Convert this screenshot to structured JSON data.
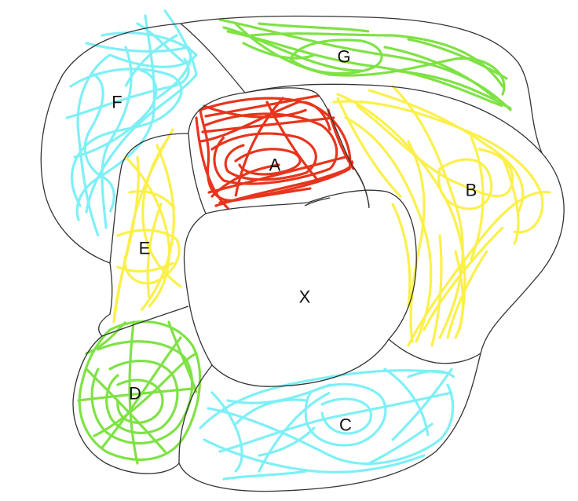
{
  "colors": {
    "red": "#e8341c",
    "yellow": "#fbf04a",
    "green": "#7ee244",
    "cyan": "#7df0f6",
    "outline": "#333333"
  },
  "regions": [
    {
      "key": "A",
      "label": "A",
      "color": "red",
      "filled": true
    },
    {
      "key": "B",
      "label": "B",
      "color": "yellow",
      "filled": true
    },
    {
      "key": "C",
      "label": "C",
      "color": "cyan",
      "filled": true
    },
    {
      "key": "D",
      "label": "D",
      "color": "green",
      "filled": true
    },
    {
      "key": "E",
      "label": "E",
      "color": "yellow",
      "filled": true
    },
    {
      "key": "F",
      "label": "F",
      "color": "cyan",
      "filled": true
    },
    {
      "key": "G",
      "label": "G",
      "color": "green",
      "filled": true
    },
    {
      "key": "X",
      "label": "X",
      "color": "",
      "filled": false
    }
  ]
}
